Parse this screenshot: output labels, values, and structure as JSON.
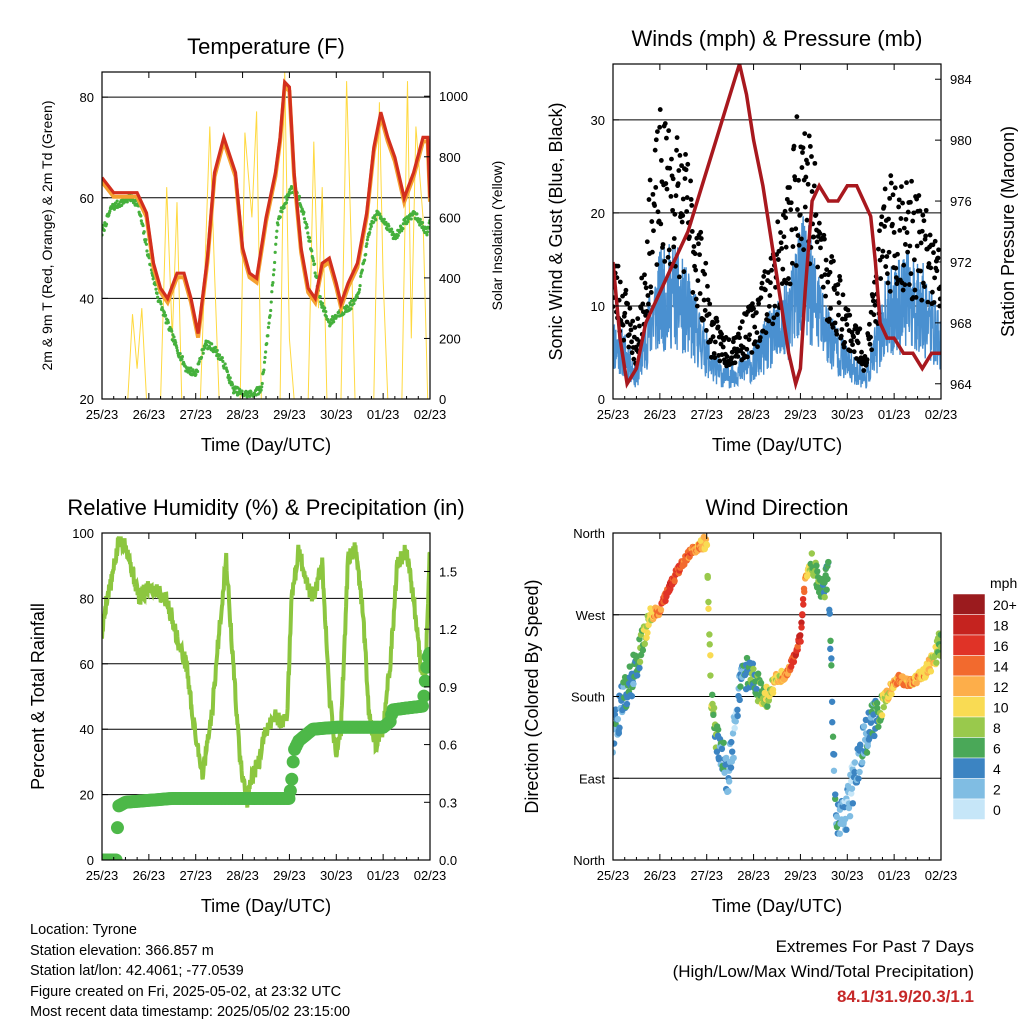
{
  "x_tick_labels": [
    "25/23",
    "26/23",
    "27/23",
    "28/23",
    "29/23",
    "30/23",
    "01/23",
    "02/23"
  ],
  "charts": [
    {
      "id": "temperature",
      "title": "Temperature (F)",
      "xlabel": "Time (Day/UTC)",
      "ylabel_left": "2m & 9m T (Red, Orange) & 2m Td (Green)",
      "ylabel_right": "Solar Insolation (Yellow)",
      "y_left_range": [
        20,
        85
      ],
      "y_left_ticks": [
        "20",
        "40",
        "60",
        "80"
      ],
      "y_right_range": [
        0,
        1080
      ],
      "y_right_ticks": [
        "0",
        "200",
        "400",
        "600",
        "800",
        "1000"
      ],
      "x_range": [
        0,
        7
      ],
      "grid_lines": [
        40,
        60,
        80
      ],
      "colors": {
        "temp_2m": "#d32f1e",
        "temp_9m": "#f5a030",
        "dewpoint": "#45b03c",
        "solar": "#ffd940"
      },
      "series": {
        "temp": {
          "x": [
            0,
            0.25,
            0.5,
            0.75,
            0.95,
            1.1,
            1.25,
            1.4,
            1.6,
            1.75,
            1.9,
            2.05,
            2.25,
            2.4,
            2.6,
            2.85,
            3.0,
            3.15,
            3.3,
            3.5,
            3.7,
            3.8,
            3.9,
            4.0,
            4.1,
            4.25,
            4.4,
            4.55,
            4.7,
            4.85,
            5.0,
            5.1,
            5.25,
            5.45,
            5.65,
            5.8,
            5.95,
            6.1,
            6.25,
            6.45,
            6.65,
            6.85,
            6.95,
            7.0
          ],
          "values": [
            64,
            61,
            61,
            61,
            57,
            47,
            42,
            40,
            45,
            45,
            40,
            33,
            48,
            65,
            72,
            65,
            50,
            45,
            44,
            56,
            65,
            72,
            83,
            82,
            65,
            50,
            42,
            40,
            47,
            48,
            43,
            39,
            43,
            47,
            57,
            70,
            77,
            72,
            68,
            60,
            65,
            72,
            72,
            60
          ]
        },
        "dewpoint": {
          "x": [
            0,
            0.2,
            0.4,
            0.6,
            0.75,
            0.85,
            1.0,
            1.2,
            1.4,
            1.6,
            1.8,
            2.0,
            2.2,
            2.4,
            2.6,
            2.8,
            3.0,
            3.2,
            3.4,
            3.6,
            3.75,
            3.85,
            3.95,
            4.05,
            4.2,
            4.35,
            4.5,
            4.65,
            4.85,
            5.05,
            5.25,
            5.45,
            5.6,
            5.75,
            5.9,
            6.05,
            6.25,
            6.45,
            6.65,
            6.8,
            6.95,
            7.0
          ],
          "values": [
            53,
            58,
            59,
            60,
            59,
            55,
            48,
            40,
            35,
            30,
            26,
            25,
            31,
            30,
            27,
            22,
            21,
            21,
            22,
            38,
            55,
            58,
            60,
            62,
            60,
            55,
            48,
            40,
            35,
            37,
            38,
            40,
            48,
            55,
            57,
            55,
            52,
            55,
            57,
            55,
            53,
            55
          ]
        },
        "solar": {
          "x": [
            0.55,
            0.65,
            0.75,
            0.85,
            0.95,
            1.05,
            1.25,
            1.38,
            1.5,
            1.6,
            1.7,
            1.9,
            2.1,
            2.2,
            2.3,
            2.4,
            2.5,
            2.65,
            2.8,
            2.95,
            3.05,
            3.2,
            3.3,
            3.4,
            3.5,
            3.65,
            3.8,
            3.9,
            4.0,
            4.1,
            4.25,
            4.4,
            4.52,
            4.62,
            4.7,
            4.8,
            4.95,
            5.1,
            5.22,
            5.32,
            5.4,
            5.5,
            5.65,
            5.8,
            5.92,
            6.0,
            6.1,
            6.25,
            6.4,
            6.52,
            6.6,
            6.7,
            6.85,
            6.95
          ],
          "values": [
            0,
            280,
            100,
            300,
            0,
            0,
            0,
            700,
            200,
            650,
            0,
            0,
            0,
            450,
            900,
            420,
            0,
            0,
            0,
            0,
            880,
            600,
            950,
            0,
            0,
            0,
            0,
            1080,
            200,
            0,
            0,
            0,
            850,
            300,
            700,
            0,
            0,
            0,
            1050,
            500,
            0,
            0,
            0,
            0,
            980,
            400,
            0,
            0,
            0,
            1050,
            200,
            900,
            600,
            0
          ]
        }
      }
    },
    {
      "id": "winds",
      "title": "Winds (mph) & Pressure (mb)",
      "xlabel": "Time (Day/UTC)",
      "ylabel_left": "Sonic Wind & Gust (Blue, Black)",
      "ylabel_right": "Station Pressure (Maroon)",
      "y_left_range": [
        0,
        36
      ],
      "y_left_ticks": [
        "0",
        "10",
        "20",
        "30"
      ],
      "y_right_range": [
        963,
        985
      ],
      "y_right_ticks": [
        "964",
        "968",
        "972",
        "976",
        "980",
        "984"
      ],
      "x_range": [
        0,
        7
      ],
      "grid_lines": [
        10,
        20,
        30
      ],
      "colors": {
        "wind": "#4a90d0",
        "gust": "#000000",
        "pressure": "#a8181e"
      },
      "series": {
        "wind_envelope": {
          "x": [
            0,
            0.3,
            0.5,
            0.8,
            1.0,
            1.3,
            1.6,
            1.9,
            2.1,
            2.4,
            2.7,
            3.0,
            3.3,
            3.6,
            3.8,
            4.0,
            4.2,
            4.4,
            4.6,
            4.8,
            5.0,
            5.2,
            5.4,
            5.6,
            5.8,
            6.0,
            6.3,
            6.6,
            6.9,
            7.0
          ],
          "values": [
            8,
            6,
            3,
            11,
            14,
            15,
            12,
            8,
            5,
            3,
            4,
            5,
            8,
            10,
            12,
            18,
            16,
            12,
            9,
            7,
            5,
            4,
            3,
            7,
            11,
            13,
            14,
            13,
            9,
            8
          ]
        },
        "gust_envelope": {
          "x": [
            0,
            0.3,
            0.5,
            0.8,
            1.0,
            1.3,
            1.6,
            1.9,
            2.1,
            2.4,
            2.7,
            3.0,
            3.3,
            3.6,
            3.8,
            4.0,
            4.2,
            4.4,
            4.6,
            4.8,
            5.0,
            5.2,
            5.4,
            5.6,
            5.8,
            6.0,
            6.3,
            6.6,
            6.9,
            7.0
          ],
          "values": [
            14,
            10,
            6,
            20,
            26,
            25,
            22,
            15,
            8,
            6,
            7,
            9,
            13,
            17,
            21,
            30,
            25,
            19,
            14,
            12,
            9,
            7,
            5,
            12,
            19,
            22,
            20,
            18,
            15,
            13
          ]
        },
        "pressure": {
          "x": [
            0,
            0.15,
            0.3,
            0.5,
            0.7,
            1.0,
            1.3,
            1.6,
            1.9,
            2.2,
            2.5,
            2.7,
            2.85,
            3.0,
            3.2,
            3.4,
            3.6,
            3.75,
            3.9,
            4.0,
            4.1,
            4.25,
            4.4,
            4.6,
            4.8,
            5.0,
            5.2,
            5.35,
            5.5,
            5.6,
            5.7,
            5.85,
            6.0,
            6.2,
            6.4,
            6.6,
            6.8,
            7.0
          ],
          "values": [
            972,
            967,
            964,
            965,
            968,
            970,
            972,
            974,
            977,
            980,
            983,
            985,
            983,
            980,
            977,
            973,
            969,
            966,
            964,
            965,
            970,
            976,
            977,
            976,
            976,
            977,
            977,
            976,
            975,
            972,
            968,
            967,
            967,
            966,
            966,
            965,
            966,
            966
          ]
        }
      }
    },
    {
      "id": "humidity",
      "title": "Relative Humidity (%) & Precipitation (in)",
      "xlabel": "Time (Day/UTC)",
      "ylabel_left": "Percent & Total Rainfall",
      "y_left_range": [
        0,
        100
      ],
      "y_left_ticks": [
        "0",
        "20",
        "40",
        "60",
        "80",
        "100"
      ],
      "y_right_range": [
        0,
        1.7
      ],
      "y_right_ticks": [
        "0.0",
        "0.3",
        "0.6",
        "0.9",
        "1.2",
        "1.5"
      ],
      "x_range": [
        0,
        7
      ],
      "grid_lines": [
        20,
        40,
        60,
        80
      ],
      "colors": {
        "rh": "#8cc63f",
        "precip": "#4db848"
      },
      "series": {
        "rh": {
          "x": [
            0,
            0.1,
            0.2,
            0.35,
            0.5,
            0.65,
            0.8,
            1.0,
            1.2,
            1.35,
            1.5,
            1.65,
            1.8,
            1.95,
            2.15,
            2.35,
            2.5,
            2.65,
            2.8,
            2.95,
            3.1,
            3.2,
            3.35,
            3.5,
            3.7,
            3.85,
            3.95,
            4.05,
            4.2,
            4.35,
            4.5,
            4.7,
            4.85,
            5.0,
            5.1,
            5.25,
            5.4,
            5.55,
            5.7,
            5.85,
            6.0,
            6.15,
            6.3,
            6.5,
            6.65,
            6.8,
            6.9,
            7.0
          ],
          "values": [
            69,
            80,
            85,
            97,
            97,
            88,
            80,
            84,
            82,
            80,
            74,
            65,
            60,
            42,
            26,
            45,
            70,
            92,
            60,
            30,
            18,
            25,
            30,
            40,
            44,
            42,
            45,
            80,
            95,
            86,
            80,
            90,
            50,
            32,
            40,
            92,
            95,
            80,
            45,
            35,
            40,
            60,
            90,
            95,
            80,
            60,
            55,
            96
          ]
        },
        "precip": {
          "x": [
            0,
            0.3,
            0.35,
            0.5,
            1.0,
            1.5,
            2.0,
            2.5,
            3.0,
            3.5,
            4.0,
            4.05,
            4.1,
            4.2,
            4.5,
            5.0,
            5.5,
            6.0,
            6.15,
            6.2,
            6.5,
            6.85,
            6.9,
            6.95,
            7.0
          ],
          "values": [
            0,
            0,
            0.28,
            0.3,
            0.31,
            0.32,
            0.32,
            0.32,
            0.32,
            0.32,
            0.32,
            0.42,
            0.57,
            0.62,
            0.68,
            0.69,
            0.69,
            0.69,
            0.72,
            0.78,
            0.79,
            0.8,
            0.93,
            1.05,
            1.08
          ]
        }
      }
    },
    {
      "id": "wind_direction",
      "title": "Wind Direction",
      "xlabel": "Time (Day/UTC)",
      "ylabel_left": "Direction (Colored By Speed)",
      "y_left_range": [
        0,
        360
      ],
      "y_ticks": [
        {
          "value": 0,
          "label": "North"
        },
        {
          "value": 90,
          "label": "East"
        },
        {
          "value": 180,
          "label": "South"
        },
        {
          "value": 270,
          "label": "West"
        },
        {
          "value": 360,
          "label": "North"
        }
      ],
      "x_range": [
        0,
        7
      ],
      "grid_lines": [
        90,
        180,
        270
      ],
      "colorbar": {
        "unit": "mph",
        "labels": [
          "20+",
          "18",
          "16",
          "14",
          "12",
          "10",
          "8",
          "6",
          "4",
          "2",
          "0"
        ],
        "colors": [
          "#9b1b1e",
          "#c5231f",
          "#e03327",
          "#f26a2e",
          "#fdae4a",
          "#f9db53",
          "#99c94c",
          "#4aa858",
          "#3c84c2",
          "#80bde3",
          "#c6e6f8"
        ]
      },
      "direction_trend": {
        "x": [
          0,
          0.2,
          0.4,
          0.6,
          0.8,
          1.0,
          1.2,
          1.4,
          1.6,
          1.8,
          2.0,
          2.1,
          2.2,
          2.3,
          2.45,
          2.6,
          2.75,
          2.9,
          3.1,
          3.3,
          3.5,
          3.7,
          3.85,
          4.0,
          4.1,
          4.25,
          4.4,
          4.5,
          4.6,
          4.75,
          4.9,
          5.0,
          5.15,
          5.3,
          5.5,
          5.65,
          5.8,
          5.95,
          6.1,
          6.3,
          6.5,
          6.7,
          6.85,
          7.0
        ],
        "values": [
          130,
          175,
          200,
          235,
          270,
          275,
          300,
          320,
          335,
          345,
          350,
          180,
          140,
          120,
          90,
          140,
          200,
          210,
          190,
          180,
          200,
          205,
          220,
          245,
          310,
          330,
          300,
          295,
          320,
          40,
          50,
          60,
          90,
          120,
          150,
          160,
          180,
          190,
          200,
          195,
          200,
          210,
          220,
          240
        ]
      },
      "speed_trend": {
        "x": [
          0,
          0.5,
          0.8,
          1.0,
          1.2,
          1.4,
          1.6,
          1.8,
          2.0,
          2.3,
          2.6,
          3.0,
          3.4,
          3.7,
          3.9,
          4.0,
          4.2,
          4.5,
          5.0,
          5.3,
          5.6,
          5.8,
          6.0,
          6.2,
          6.5,
          6.8,
          7.0
        ],
        "values": [
          3,
          5,
          10,
          13,
          16,
          15,
          14,
          13,
          10,
          4,
          2,
          6,
          9,
          12,
          16,
          17,
          8,
          6,
          2,
          3,
          5,
          9,
          12,
          13,
          12,
          10,
          6
        ]
      }
    }
  ],
  "station_info": [
    "Location: Tyrone",
    "Station elevation: 366.857 m",
    "Station lat/lon: 42.4061; -77.0539",
    "Figure created on Fri, 2025-05-02, at 23:32 UTC",
    "Most recent data timestamp: 2025/05/02 23:15:00"
  ],
  "extremes": {
    "title": "Extremes For Past 7 Days",
    "subtitle": "(High/Low/Max Wind/Total Precipitation)",
    "values": "84.1/31.9/20.3/1.1"
  }
}
